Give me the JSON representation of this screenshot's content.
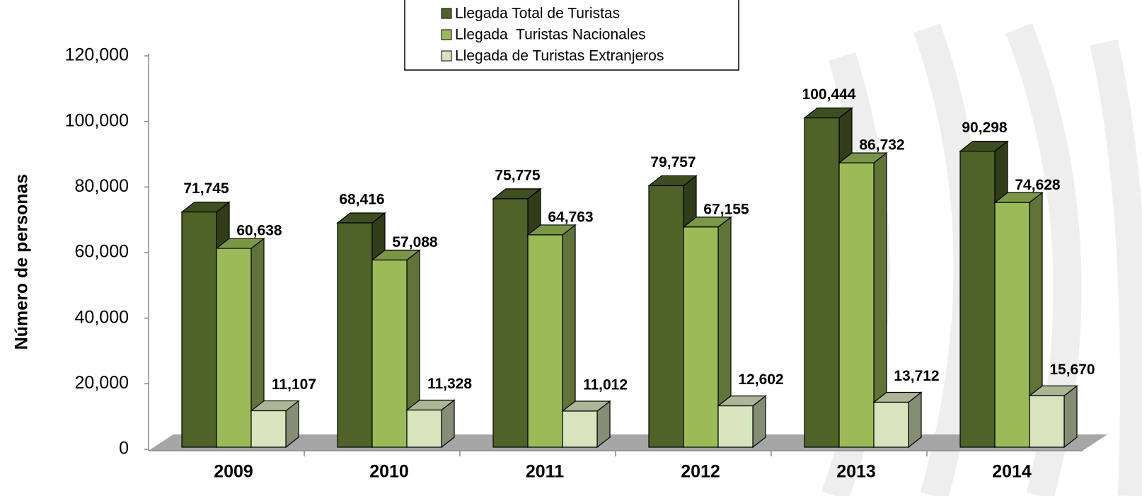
{
  "chart_data": {
    "type": "bar3d",
    "y_label": "Número de personas",
    "categories": [
      "2009",
      "2010",
      "2011",
      "2012",
      "2013",
      "2014"
    ],
    "series": [
      {
        "name": "Llegada Total de Turistas",
        "color": "#4f6228",
        "values": [
          71745,
          68416,
          75775,
          79757,
          100444,
          90298
        ],
        "value_labels": [
          "71,745",
          "68,416",
          "75,775",
          "79,757",
          "100,444",
          "90,298"
        ]
      },
      {
        "name": "Llegada  Turistas Nacionales",
        "color": "#9bbb59",
        "values": [
          60638,
          57088,
          64763,
          67155,
          86732,
          74628
        ],
        "value_labels": [
          "60,638",
          "57,088",
          "64,763",
          "67,155",
          "86,732",
          "74,628"
        ]
      },
      {
        "name": "Llegada de Turistas Extranjeros",
        "color": "#d7e4bd",
        "values": [
          11107,
          11328,
          11012,
          12602,
          13712,
          15670
        ],
        "value_labels": [
          "11,107",
          "11,328",
          "11,012",
          "12,602",
          "13,712",
          "15,670"
        ]
      }
    ],
    "ylim": [
      0,
      120000
    ],
    "yticks": [
      0,
      {
        "value": 20000,
        "label": "20,000"
      },
      {
        "value": 40000,
        "label": "40,000"
      },
      {
        "value": 60000,
        "label": "60,000"
      },
      {
        "value": 80000,
        "label": "80,000"
      },
      {
        "value": 100000,
        "label": "100,000"
      },
      {
        "value": 120000,
        "label": "120,000"
      }
    ],
    "legend": "top"
  }
}
